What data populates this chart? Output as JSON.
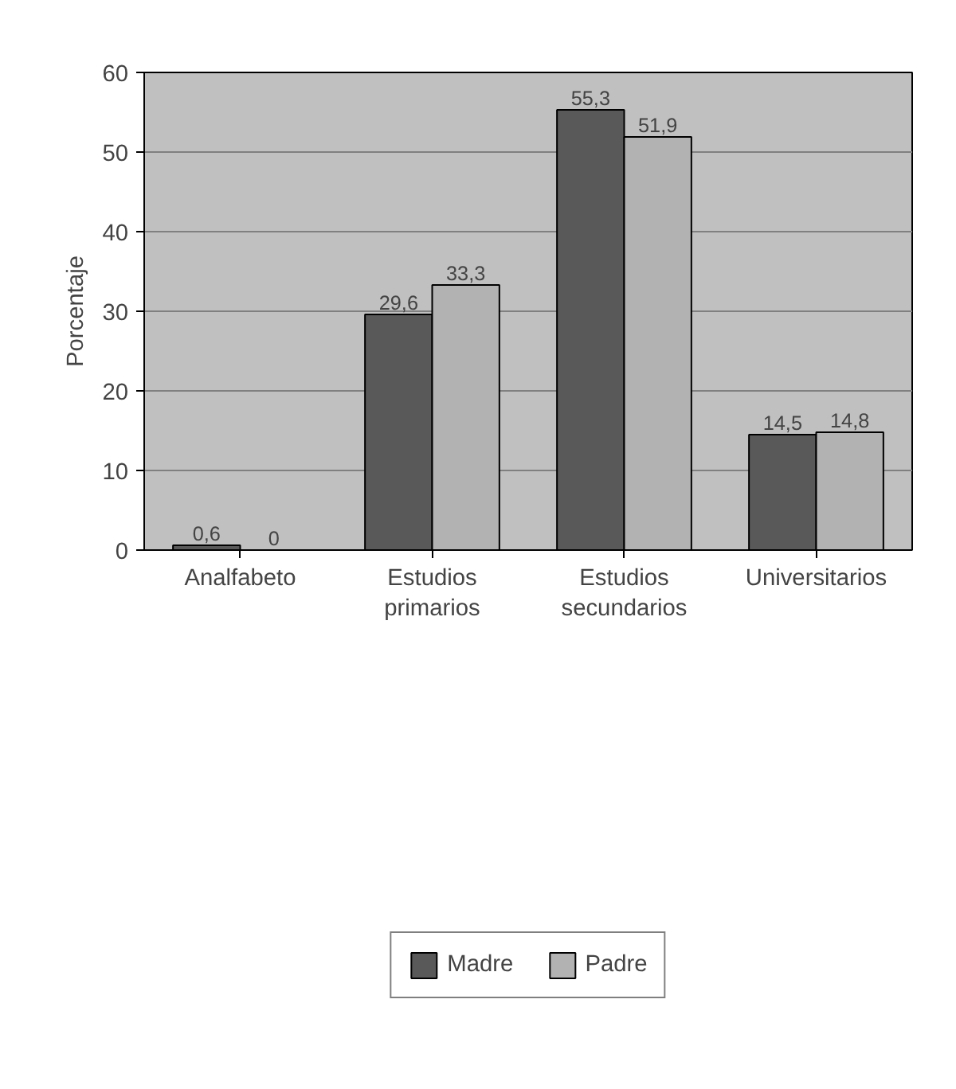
{
  "chart_data": {
    "type": "bar",
    "ylabel": "Porcentaje",
    "categories": [
      "Analfabeto",
      "Estudios\nprimarios",
      "Estudios\nsecundarios",
      "Universitarios"
    ],
    "series": [
      {
        "name": "Madre",
        "color": "#595959",
        "values": [
          0.6,
          29.6,
          55.3,
          14.5
        ],
        "value_labels": [
          "0,6",
          "29,6",
          "55,3",
          "14,5"
        ]
      },
      {
        "name": "Padre",
        "color": "#b2b2b2",
        "values": [
          0,
          33.3,
          51.9,
          14.8
        ],
        "value_labels": [
          "0",
          "33,3",
          "51,9",
          "14,8"
        ]
      }
    ],
    "ylim": [
      0,
      60
    ],
    "yticks": [
      0,
      10,
      20,
      30,
      40,
      50,
      60
    ],
    "grid": "y",
    "legend": "bottom"
  }
}
